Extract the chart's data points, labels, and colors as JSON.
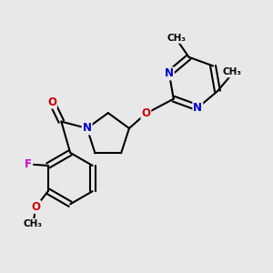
{
  "background_color": "#e8e8e8",
  "bond_color": "#000000",
  "bond_width": 1.5,
  "atom_colors": {
    "N": "#0000cc",
    "O": "#cc0000",
    "F": "#cc00cc",
    "C": "#000000"
  },
  "font_size": 8.5,
  "fig_width": 3.0,
  "fig_height": 3.0,
  "xlim": [
    0,
    10
  ],
  "ylim": [
    0,
    10
  ]
}
